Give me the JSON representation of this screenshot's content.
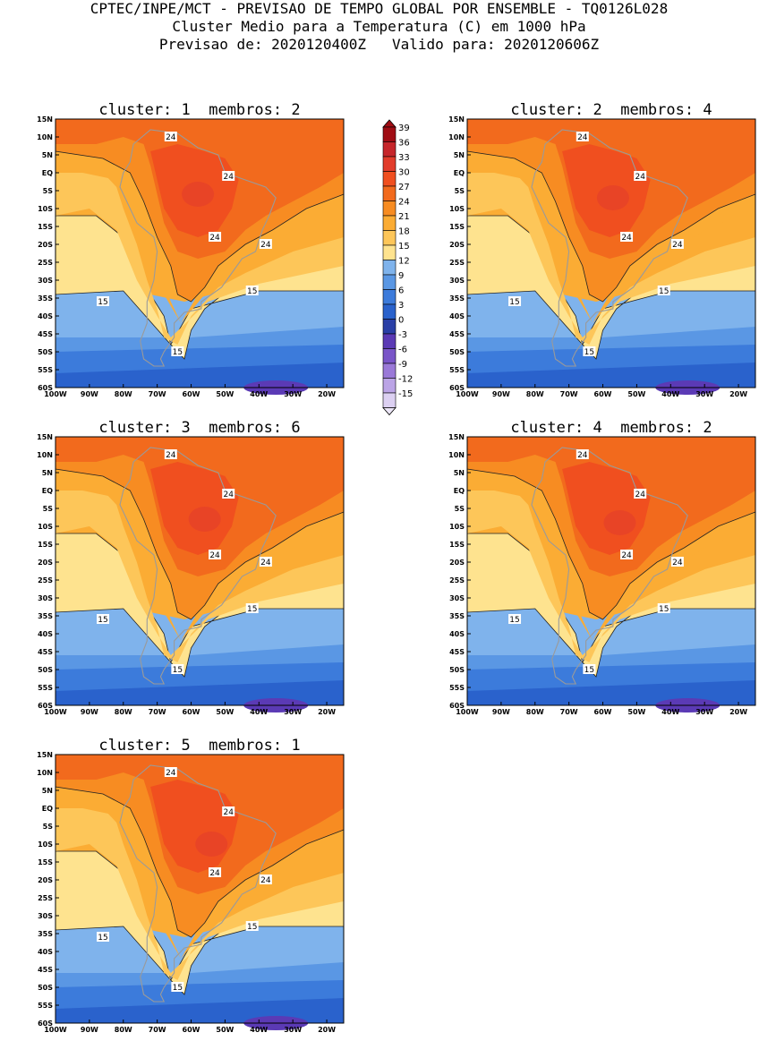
{
  "header": {
    "line1": "CPTEC/INPE/MCT - PREVISAO DE TEMPO GLOBAL POR ENSEMBLE - TQ0126L028",
    "line2": "Cluster Medio para a Temperatura (C) em 1000 hPa",
    "line3": "Previsao de: 2020120400Z   Valido para: 2020120606Z"
  },
  "panels": [
    {
      "title": "cluster: 1  membros: 2",
      "cluster": 1,
      "members": 2
    },
    {
      "title": "cluster: 2  membros: 4",
      "cluster": 2,
      "members": 4
    },
    {
      "title": "cluster: 3  membros: 6",
      "cluster": 3,
      "members": 6
    },
    {
      "title": "cluster: 4  membros: 2",
      "cluster": 4,
      "members": 2
    },
    {
      "title": "cluster: 5  membros: 1",
      "cluster": 5,
      "members": 1
    }
  ],
  "map": {
    "lat_labels": [
      "15N",
      "10N",
      "5N",
      "EQ",
      "5S",
      "10S",
      "15S",
      "20S",
      "25S",
      "30S",
      "35S",
      "40S",
      "45S",
      "50S",
      "55S",
      "60S"
    ],
    "lon_labels": [
      "100W",
      "90W",
      "80W",
      "70W",
      "60W",
      "50W",
      "40W",
      "30W",
      "20W"
    ],
    "contour_labels": [
      "24",
      "24",
      "24",
      "24",
      "15",
      "15",
      "15"
    ]
  },
  "colorbar": {
    "labels": [
      "39",
      "36",
      "33",
      "30",
      "27",
      "24",
      "21",
      "18",
      "15",
      "12",
      "9",
      "6",
      "3",
      "0",
      "-3",
      "-6",
      "-9",
      "-12",
      "-15"
    ],
    "colors": [
      "#a00d14",
      "#c6262b",
      "#e23c2b",
      "#f04f1f",
      "#f26a1d",
      "#f78c22",
      "#fbac34",
      "#fdc659",
      "#fee38f",
      "#7fb3ec",
      "#5a97e4",
      "#3c7bdb",
      "#2a62cc",
      "#2a3fa6",
      "#5b3ab5",
      "#7955c8",
      "#9a79d8",
      "#bba4e6",
      "#dcd0f2"
    ]
  }
}
